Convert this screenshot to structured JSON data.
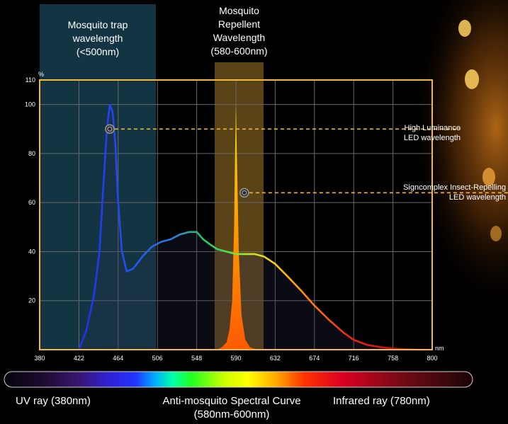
{
  "bands": {
    "trap": {
      "line1": "Mosquito trap",
      "line2": "wavelength",
      "line3": "(<500nm)"
    },
    "repellent": {
      "line1": "Mosquito",
      "line2": "Repellent",
      "line3": "Wavelength",
      "line4": "(580-600nm)"
    }
  },
  "callouts": {
    "high_lum": {
      "line1": "High Luminance",
      "line2": "LED wavelength"
    },
    "insect": {
      "line1": "Signcomplex Insect-Repelling",
      "line2": "LED wavelength"
    }
  },
  "spectrum_bar": {
    "left_label": "UV ray (380nm)",
    "center_label_1": "Anti-mosquito Spectral Curve",
    "center_label_2": "(580nm-600nm)",
    "right_label": "Infrared ray (780nm)"
  },
  "colors": {
    "frame": "#f5b93a",
    "trap_band": "#143a4a",
    "repellent_band": "#6b4f1c",
    "grid": "#6a6a6a",
    "callout_line": "#f2b634"
  },
  "chart_data": {
    "type": "area",
    "title": "",
    "xlabel": "nm",
    "ylabel": "%",
    "xlim": [
      380,
      800
    ],
    "ylim": [
      0,
      110
    ],
    "x_ticks": [
      380,
      422,
      464,
      506,
      548,
      590,
      632,
      674,
      716,
      758,
      800
    ],
    "y_ticks": [
      20,
      40,
      60,
      80,
      100,
      110
    ],
    "grid": true,
    "bands": [
      {
        "name": "Mosquito trap wavelength (<500nm)",
        "x_range": [
          380,
          500
        ]
      },
      {
        "name": "Mosquito Repellent Wavelength (580-600nm)",
        "x_range": [
          580,
          600
        ]
      }
    ],
    "series": [
      {
        "name": "High Luminance LED wavelength",
        "x": [
          422,
          430,
          438,
          444,
          448,
          452,
          455,
          458,
          461,
          464,
          468,
          473,
          480,
          490,
          500,
          510,
          520,
          530,
          540,
          548,
          555,
          562,
          570,
          580,
          590,
          600,
          610,
          620,
          632,
          645,
          660,
          674,
          690,
          705,
          716,
          730,
          745,
          758,
          770,
          785,
          800
        ],
        "y": [
          0,
          8,
          22,
          40,
          66,
          90,
          100,
          97,
          84,
          60,
          40,
          32,
          33,
          38,
          42,
          44,
          45,
          47,
          48,
          48,
          45,
          43,
          41,
          40,
          39,
          39,
          39,
          38,
          35,
          30,
          24,
          18,
          12,
          7,
          4,
          2,
          1,
          0.5,
          0.2,
          0,
          0
        ]
      },
      {
        "name": "Signcomplex Insect-Repelling LED wavelength",
        "x": [
          570,
          575,
          580,
          583,
          586,
          588,
          589,
          590,
          591,
          593,
          596,
          600,
          605,
          612
        ],
        "y": [
          0,
          1,
          3,
          8,
          20,
          50,
          78,
          100,
          80,
          40,
          14,
          4,
          1,
          0
        ]
      }
    ],
    "markers": [
      {
        "x": 455,
        "y": 90,
        "series": "High Luminance LED wavelength"
      },
      {
        "x": 599,
        "y": 64,
        "series": "Signcomplex Insect-Repelling LED wavelength"
      }
    ]
  }
}
